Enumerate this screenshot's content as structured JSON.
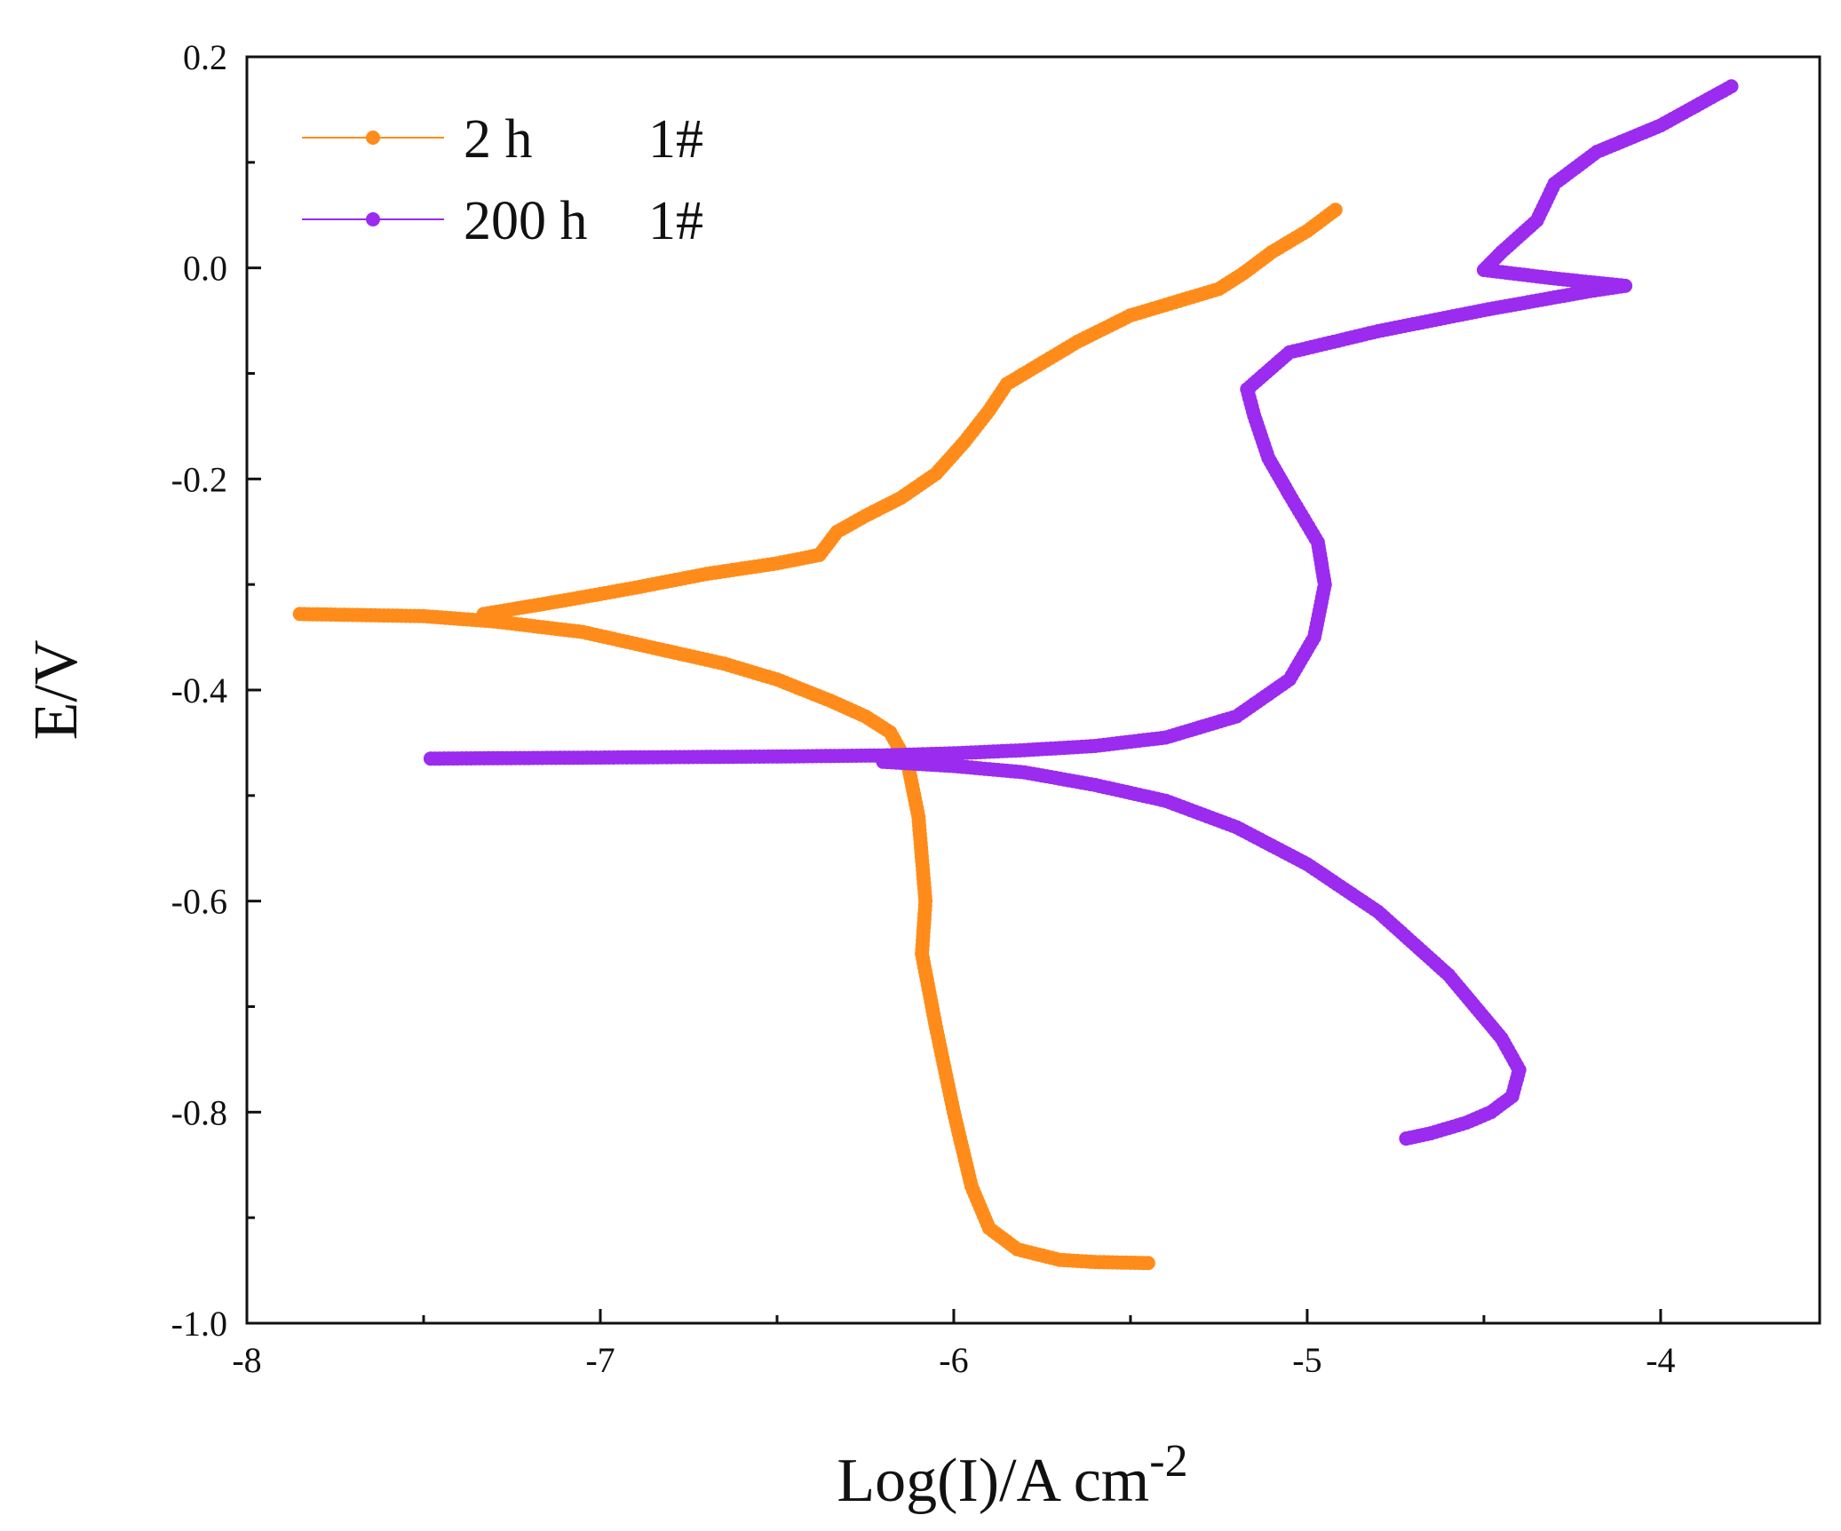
{
  "chart_data": {
    "type": "line",
    "xlabel": "Log(I)/A cm",
    "xlabel_sup": "-2",
    "ylabel": "E/V",
    "xlim": [
      -8,
      -3.55
    ],
    "ylim": [
      -1.0,
      0.2
    ],
    "xticks": [
      -8,
      -7,
      -6,
      -5,
      -4
    ],
    "xtick_labels": [
      "-8",
      "-7",
      "-6",
      "-5",
      "-4"
    ],
    "yticks": [
      -1.0,
      -0.8,
      -0.6,
      -0.4,
      -0.2,
      0.0,
      0.2
    ],
    "ytick_labels": [
      "-1.0",
      "-0.8",
      "-0.6",
      "-0.4",
      "-0.2",
      "0.0",
      "0.2"
    ],
    "legend_position": "top-left",
    "series": [
      {
        "name": "2 h",
        "sample": "1#",
        "color": "#ff8c1a",
        "anodic": [
          [
            -7.33,
            -0.328
          ],
          [
            -7.1,
            -0.315
          ],
          [
            -6.9,
            -0.303
          ],
          [
            -6.7,
            -0.29
          ],
          [
            -6.5,
            -0.28
          ],
          [
            -6.38,
            -0.272
          ],
          [
            -6.33,
            -0.25
          ],
          [
            -6.25,
            -0.235
          ],
          [
            -6.15,
            -0.218
          ],
          [
            -6.05,
            -0.195
          ],
          [
            -5.97,
            -0.165
          ],
          [
            -5.9,
            -0.135
          ],
          [
            -5.85,
            -0.11
          ],
          [
            -5.75,
            -0.09
          ],
          [
            -5.65,
            -0.07
          ],
          [
            -5.5,
            -0.045
          ],
          [
            -5.35,
            -0.03
          ],
          [
            -5.25,
            -0.02
          ],
          [
            -5.18,
            -0.005
          ],
          [
            -5.1,
            0.015
          ],
          [
            -5.0,
            0.035
          ],
          [
            -4.92,
            0.055
          ]
        ],
        "cathodic": [
          [
            -7.85,
            -0.328
          ],
          [
            -7.5,
            -0.33
          ],
          [
            -7.3,
            -0.335
          ],
          [
            -7.05,
            -0.345
          ],
          [
            -6.85,
            -0.36
          ],
          [
            -6.65,
            -0.375
          ],
          [
            -6.5,
            -0.39
          ],
          [
            -6.35,
            -0.41
          ],
          [
            -6.25,
            -0.425
          ],
          [
            -6.18,
            -0.44
          ],
          [
            -6.13,
            -0.47
          ],
          [
            -6.1,
            -0.52
          ],
          [
            -6.08,
            -0.6
          ],
          [
            -6.09,
            -0.65
          ],
          [
            -6.05,
            -0.72
          ],
          [
            -6.0,
            -0.8
          ],
          [
            -5.95,
            -0.87
          ],
          [
            -5.9,
            -0.91
          ],
          [
            -5.82,
            -0.93
          ],
          [
            -5.7,
            -0.94
          ],
          [
            -5.6,
            -0.942
          ],
          [
            -5.45,
            -0.943
          ]
        ]
      },
      {
        "name": "200 h",
        "sample": "1#",
        "color": "#9b2bef",
        "anodic": [
          [
            -7.48,
            -0.465
          ],
          [
            -7.0,
            -0.464
          ],
          [
            -6.5,
            -0.463
          ],
          [
            -6.2,
            -0.462
          ],
          [
            -6.0,
            -0.46
          ],
          [
            -5.8,
            -0.457
          ],
          [
            -5.6,
            -0.453
          ],
          [
            -5.4,
            -0.445
          ],
          [
            -5.2,
            -0.425
          ],
          [
            -5.05,
            -0.39
          ],
          [
            -4.98,
            -0.35
          ],
          [
            -4.95,
            -0.3
          ],
          [
            -4.97,
            -0.26
          ],
          [
            -5.05,
            -0.215
          ],
          [
            -5.11,
            -0.18
          ],
          [
            -5.15,
            -0.14
          ],
          [
            -5.17,
            -0.115
          ],
          [
            -5.05,
            -0.08
          ],
          [
            -4.8,
            -0.06
          ],
          [
            -4.5,
            -0.04
          ],
          [
            -4.2,
            -0.022
          ],
          [
            -4.1,
            -0.017
          ],
          [
            -4.3,
            -0.01
          ],
          [
            -4.5,
            -0.002
          ],
          [
            -4.45,
            0.015
          ],
          [
            -4.35,
            0.045
          ],
          [
            -4.3,
            0.08
          ],
          [
            -4.18,
            0.11
          ],
          [
            -4.0,
            0.135
          ],
          [
            -3.8,
            0.172
          ]
        ],
        "cathodic": [
          [
            -6.2,
            -0.468
          ],
          [
            -6.0,
            -0.472
          ],
          [
            -5.8,
            -0.478
          ],
          [
            -5.6,
            -0.49
          ],
          [
            -5.4,
            -0.505
          ],
          [
            -5.2,
            -0.53
          ],
          [
            -5.0,
            -0.565
          ],
          [
            -4.8,
            -0.61
          ],
          [
            -4.6,
            -0.67
          ],
          [
            -4.45,
            -0.73
          ],
          [
            -4.4,
            -0.76
          ],
          [
            -4.42,
            -0.785
          ],
          [
            -4.48,
            -0.8
          ],
          [
            -4.55,
            -0.81
          ],
          [
            -4.65,
            -0.82
          ],
          [
            -4.72,
            -0.825
          ]
        ]
      }
    ]
  }
}
